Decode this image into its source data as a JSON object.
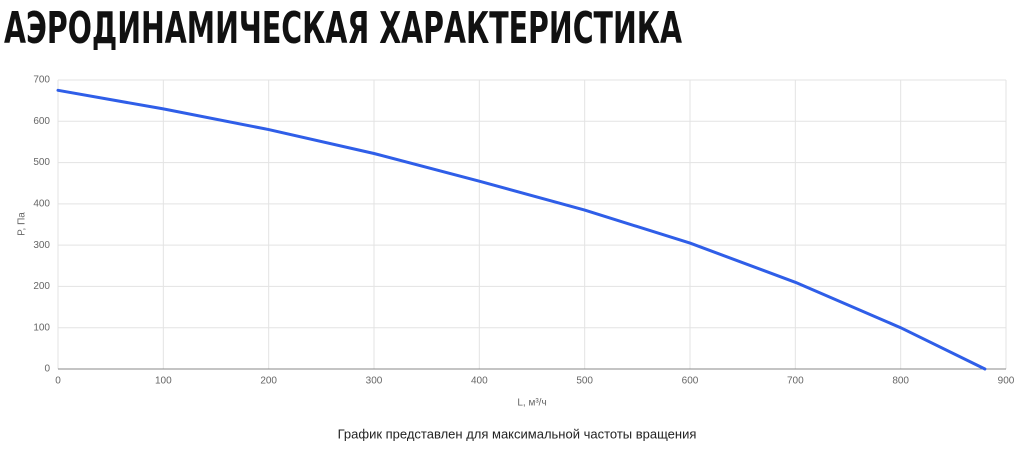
{
  "chart_data": {
    "type": "line",
    "title": "АЭРОДИНАМИЧЕСКАЯ ХАРАКТЕРИСТИКА",
    "x": [
      0,
      100,
      200,
      300,
      400,
      500,
      600,
      700,
      800,
      880
    ],
    "series": [
      {
        "color": "#2f5ee8",
        "values": [
          675,
          630,
          580,
          522,
          455,
          385,
          305,
          210,
          100,
          0
        ]
      }
    ],
    "xlabel": "L, м³/ч",
    "ylabel": "P, Па",
    "xlim": [
      0,
      900
    ],
    "xticks": [
      0,
      100,
      200,
      300,
      400,
      500,
      600,
      700,
      800,
      900
    ],
    "ylim": [
      0,
      700
    ],
    "yticks": [
      0,
      100,
      200,
      300,
      400,
      500,
      600,
      700
    ],
    "grid": true,
    "note": "График представлен для максимальной частоты вращения"
  }
}
